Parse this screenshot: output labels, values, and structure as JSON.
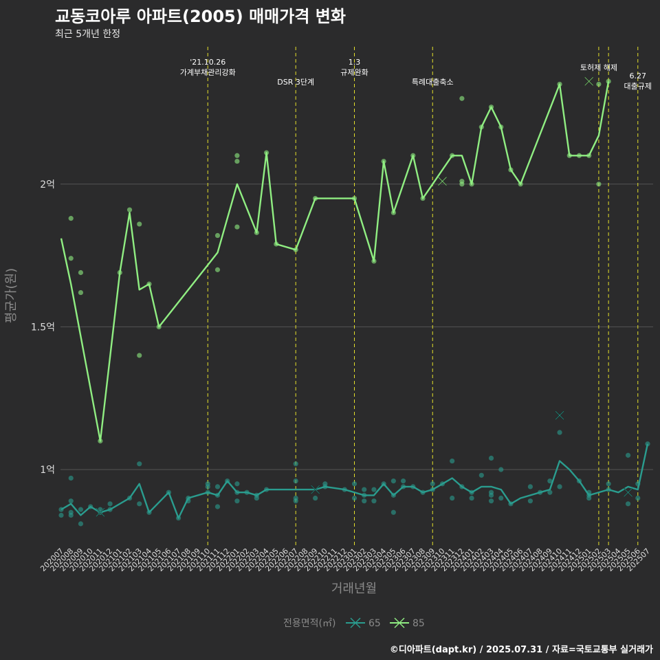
{
  "header": {
    "title": "교동코아루 아파트(2005) 매매가격 변화",
    "subtitle": "최근 5개년 한정"
  },
  "caption": "©디아파트(dapt.kr) / 2025.07.31 / 자료=국토교통부 실거래가",
  "colors": {
    "background": "#2b2b2c",
    "grid": "#555555",
    "event_line": "#e6e22a",
    "series_65": "#2a9d8f",
    "series_85": "#90ee82"
  },
  "chart_data": {
    "type": "line",
    "title": "교동코아루 아파트(2005) 매매가격 변화",
    "subtitle": "최근 5개년 한정",
    "xlabel": "거래년월",
    "ylabel": "평균가(원)",
    "ylim": [
      0.73,
      2.36
    ],
    "y_ticks": [
      {
        "value": 1.0,
        "label": "1억"
      },
      {
        "value": 1.5,
        "label": "1.5억"
      },
      {
        "value": 2.0,
        "label": "2억"
      }
    ],
    "categories": [
      "202007",
      "202008",
      "202009",
      "202010",
      "202011",
      "202012",
      "202101",
      "202102",
      "202103",
      "202104",
      "202105",
      "202106",
      "202107",
      "202108",
      "202109",
      "202110",
      "202111",
      "202112",
      "202201",
      "202202",
      "202203",
      "202204",
      "202205",
      "202206",
      "202207",
      "202208",
      "202209",
      "202210",
      "202211",
      "202212",
      "202301",
      "202302",
      "202303",
      "202304",
      "202305",
      "202306",
      "202307",
      "202308",
      "202309",
      "202310",
      "202311",
      "202312",
      "202401",
      "202402",
      "202403",
      "202404",
      "202405",
      "202406",
      "202407",
      "202408",
      "202409",
      "202410",
      "202411",
      "202412",
      "202501",
      "202502",
      "202503",
      "202504",
      "202505",
      "202506",
      "202507"
    ],
    "events": [
      {
        "date": "202110",
        "label": "'21.10.26\n가계부채관리강화",
        "row": 1
      },
      {
        "date": "202207",
        "label": "DSR 3단계",
        "row": 2
      },
      {
        "date": "202301",
        "label": "1.3\n규제완화",
        "row": 1
      },
      {
        "date": "202309",
        "label": "특례대출축소",
        "row": 2
      },
      {
        "date": "202502",
        "label": "토허제 해제",
        "row": 0
      },
      {
        "date": "202503",
        "label": "",
        "row": 0
      },
      {
        "date": "202506",
        "label": "6.27\n대출규제",
        "row": 3
      }
    ],
    "legend": {
      "title": "전용면적(㎡)",
      "position": "bottom"
    },
    "series": [
      {
        "name": "65",
        "color": "#2a9d8f",
        "line": [
          [
            "202007",
            0.86
          ],
          [
            "202008",
            0.88
          ],
          [
            "202009",
            0.84
          ],
          [
            "202010",
            0.87
          ],
          [
            "202011",
            0.85
          ],
          [
            "202012",
            0.86
          ],
          [
            "202102",
            0.9
          ],
          [
            "202103",
            0.95
          ],
          [
            "202104",
            0.85
          ],
          [
            "202106",
            0.92
          ],
          [
            "202107",
            0.83
          ],
          [
            "202108",
            0.9
          ],
          [
            "202110",
            0.92
          ],
          [
            "202111",
            0.91
          ],
          [
            "202112",
            0.96
          ],
          [
            "202201",
            0.92
          ],
          [
            "202202",
            0.92
          ],
          [
            "202203",
            0.91
          ],
          [
            "202204",
            0.93
          ],
          [
            "202209",
            0.93
          ],
          [
            "202210",
            0.94
          ],
          [
            "202212",
            0.93
          ],
          [
            "202302",
            0.91
          ],
          [
            "202303",
            0.91
          ],
          [
            "202304",
            0.95
          ],
          [
            "202305",
            0.91
          ],
          [
            "202306",
            0.94
          ],
          [
            "202307",
            0.94
          ],
          [
            "202308",
            0.92
          ],
          [
            "202309",
            0.93
          ],
          [
            "202310",
            0.95
          ],
          [
            "202311",
            0.97
          ],
          [
            "202312",
            0.94
          ],
          [
            "202401",
            0.92
          ],
          [
            "202402",
            0.94
          ],
          [
            "202403",
            0.94
          ],
          [
            "202404",
            0.93
          ],
          [
            "202405",
            0.88
          ],
          [
            "202406",
            0.9
          ],
          [
            "202407",
            0.91
          ],
          [
            "202408",
            0.92
          ],
          [
            "202409",
            0.93
          ],
          [
            "202410",
            1.03
          ],
          [
            "202411",
            1.0
          ],
          [
            "202412",
            0.96
          ],
          [
            "202501",
            0.91
          ],
          [
            "202503",
            0.93
          ],
          [
            "202504",
            0.92
          ],
          [
            "202505",
            0.94
          ],
          [
            "202506",
            0.93
          ],
          [
            "202507",
            1.09
          ]
        ],
        "points": [
          [
            "202007",
            0.84
          ],
          [
            "202007",
            0.86
          ],
          [
            "202008",
            0.85
          ],
          [
            "202008",
            0.84
          ],
          [
            "202008",
            0.89
          ],
          [
            "202008",
            0.97
          ],
          [
            "202009",
            0.86
          ],
          [
            "202009",
            0.81
          ],
          [
            "202010",
            0.87
          ],
          [
            "202011",
            0.85
          ],
          [
            "202011",
            0.86
          ],
          [
            "202012",
            0.86
          ],
          [
            "202012",
            0.88
          ],
          [
            "202102",
            0.9
          ],
          [
            "202103",
            0.88
          ],
          [
            "202103",
            1.02
          ],
          [
            "202104",
            0.85
          ],
          [
            "202106",
            0.92
          ],
          [
            "202107",
            0.83
          ],
          [
            "202108",
            0.9
          ],
          [
            "202108",
            0.89
          ],
          [
            "202110",
            0.92
          ],
          [
            "202110",
            0.95
          ],
          [
            "202110",
            0.94
          ],
          [
            "202111",
            0.91
          ],
          [
            "202111",
            0.94
          ],
          [
            "202111",
            0.87
          ],
          [
            "202112",
            0.96
          ],
          [
            "202201",
            0.92
          ],
          [
            "202201",
            0.89
          ],
          [
            "202201",
            0.95
          ],
          [
            "202202",
            0.92
          ],
          [
            "202203",
            0.91
          ],
          [
            "202203",
            0.9
          ],
          [
            "202204",
            0.93
          ],
          [
            "202207",
            0.96
          ],
          [
            "202207",
            0.9
          ],
          [
            "202207",
            0.89
          ],
          [
            "202207",
            1.02
          ],
          [
            "202209",
            0.9
          ],
          [
            "202210",
            0.94
          ],
          [
            "202210",
            0.95
          ],
          [
            "202212",
            0.93
          ],
          [
            "202301",
            0.95
          ],
          [
            "202301",
            0.9
          ],
          [
            "202302",
            0.91
          ],
          [
            "202302",
            0.89
          ],
          [
            "202302",
            0.93
          ],
          [
            "202303",
            0.93
          ],
          [
            "202303",
            0.89
          ],
          [
            "202304",
            0.95
          ],
          [
            "202305",
            0.91
          ],
          [
            "202305",
            0.96
          ],
          [
            "202305",
            0.85
          ],
          [
            "202306",
            0.94
          ],
          [
            "202306",
            0.96
          ],
          [
            "202307",
            0.94
          ],
          [
            "202308",
            0.92
          ],
          [
            "202309",
            0.93
          ],
          [
            "202309",
            0.95
          ],
          [
            "202310",
            0.95
          ],
          [
            "202311",
            0.9
          ],
          [
            "202311",
            1.03
          ],
          [
            "202312",
            0.94
          ],
          [
            "202401",
            0.92
          ],
          [
            "202401",
            0.9
          ],
          [
            "202402",
            0.98
          ],
          [
            "202403",
            0.92
          ],
          [
            "202403",
            0.91
          ],
          [
            "202403",
            0.89
          ],
          [
            "202403",
            1.04
          ],
          [
            "202404",
            0.9
          ],
          [
            "202404",
            1.0
          ],
          [
            "202405",
            0.88
          ],
          [
            "202407",
            0.94
          ],
          [
            "202407",
            0.89
          ],
          [
            "202408",
            0.92
          ],
          [
            "202409",
            0.92
          ],
          [
            "202409",
            0.96
          ],
          [
            "202410",
            0.94
          ],
          [
            "202410",
            1.13
          ],
          [
            "202412",
            0.96
          ],
          [
            "202501",
            0.91
          ],
          [
            "202501",
            0.92
          ],
          [
            "202501",
            0.9
          ],
          [
            "202503",
            0.93
          ],
          [
            "202503",
            0.95
          ],
          [
            "202505",
            0.88
          ],
          [
            "202505",
            1.05
          ],
          [
            "202506",
            0.9
          ],
          [
            "202506",
            0.95
          ],
          [
            "202507",
            1.09
          ]
        ],
        "crosses": [
          [
            "202011",
            0.85
          ],
          [
            "202209",
            0.93
          ],
          [
            "202410",
            1.19
          ],
          [
            "202505",
            0.92
          ]
        ]
      },
      {
        "name": "85",
        "color": "#90ee82",
        "line": [
          [
            "202007",
            1.81
          ],
          [
            "202008",
            1.65
          ],
          [
            "202011",
            1.1
          ],
          [
            "202101",
            1.69
          ],
          [
            "202102",
            1.9
          ],
          [
            "202103",
            1.63
          ],
          [
            "202104",
            1.65
          ],
          [
            "202105",
            1.5
          ],
          [
            "202111",
            1.76
          ],
          [
            "202201",
            2.0
          ],
          [
            "202203",
            1.83
          ],
          [
            "202204",
            2.11
          ],
          [
            "202205",
            1.79
          ],
          [
            "202207",
            1.77
          ],
          [
            "202209",
            1.95
          ],
          [
            "202301",
            1.95
          ],
          [
            "202303",
            1.73
          ],
          [
            "202304",
            2.08
          ],
          [
            "202305",
            1.9
          ],
          [
            "202307",
            2.1
          ],
          [
            "202308",
            1.95
          ],
          [
            "202311",
            2.1
          ],
          [
            "202312",
            2.1
          ],
          [
            "202401",
            2.0
          ],
          [
            "202402",
            2.2
          ],
          [
            "202403",
            2.27
          ],
          [
            "202404",
            2.2
          ],
          [
            "202405",
            2.05
          ],
          [
            "202406",
            2.0
          ],
          [
            "202410",
            2.35
          ],
          [
            "202411",
            2.1
          ],
          [
            "202412",
            2.1
          ],
          [
            "202501",
            2.1
          ],
          [
            "202502",
            2.17
          ],
          [
            "202503",
            2.36
          ]
        ],
        "points": [
          [
            "202008",
            1.88
          ],
          [
            "202008",
            1.74
          ],
          [
            "202009",
            1.69
          ],
          [
            "202009",
            1.62
          ],
          [
            "202011",
            1.1
          ],
          [
            "202101",
            1.69
          ],
          [
            "202102",
            1.91
          ],
          [
            "202103",
            1.86
          ],
          [
            "202103",
            1.4
          ],
          [
            "202104",
            1.65
          ],
          [
            "202105",
            1.5
          ],
          [
            "202111",
            1.7
          ],
          [
            "202111",
            1.82
          ],
          [
            "202201",
            2.1
          ],
          [
            "202201",
            2.08
          ],
          [
            "202201",
            1.85
          ],
          [
            "202203",
            1.83
          ],
          [
            "202204",
            2.11
          ],
          [
            "202205",
            1.79
          ],
          [
            "202207",
            1.77
          ],
          [
            "202209",
            1.95
          ],
          [
            "202301",
            1.95
          ],
          [
            "202303",
            1.73
          ],
          [
            "202304",
            2.08
          ],
          [
            "202305",
            1.9
          ],
          [
            "202307",
            2.1
          ],
          [
            "202308",
            1.95
          ],
          [
            "202311",
            2.1
          ],
          [
            "202312",
            2.01
          ],
          [
            "202312",
            2.0
          ],
          [
            "202312",
            2.3
          ],
          [
            "202401",
            2.0
          ],
          [
            "202402",
            2.2
          ],
          [
            "202403",
            2.27
          ],
          [
            "202404",
            2.2
          ],
          [
            "202405",
            2.05
          ],
          [
            "202406",
            2.0
          ],
          [
            "202410",
            2.35
          ],
          [
            "202411",
            2.1
          ],
          [
            "202412",
            2.1
          ],
          [
            "202501",
            2.1
          ],
          [
            "202502",
            2.35
          ],
          [
            "202502",
            2.0
          ],
          [
            "202503",
            2.36
          ]
        ],
        "crosses": [
          [
            "202310",
            2.01
          ],
          [
            "202501",
            2.36
          ]
        ]
      }
    ]
  }
}
